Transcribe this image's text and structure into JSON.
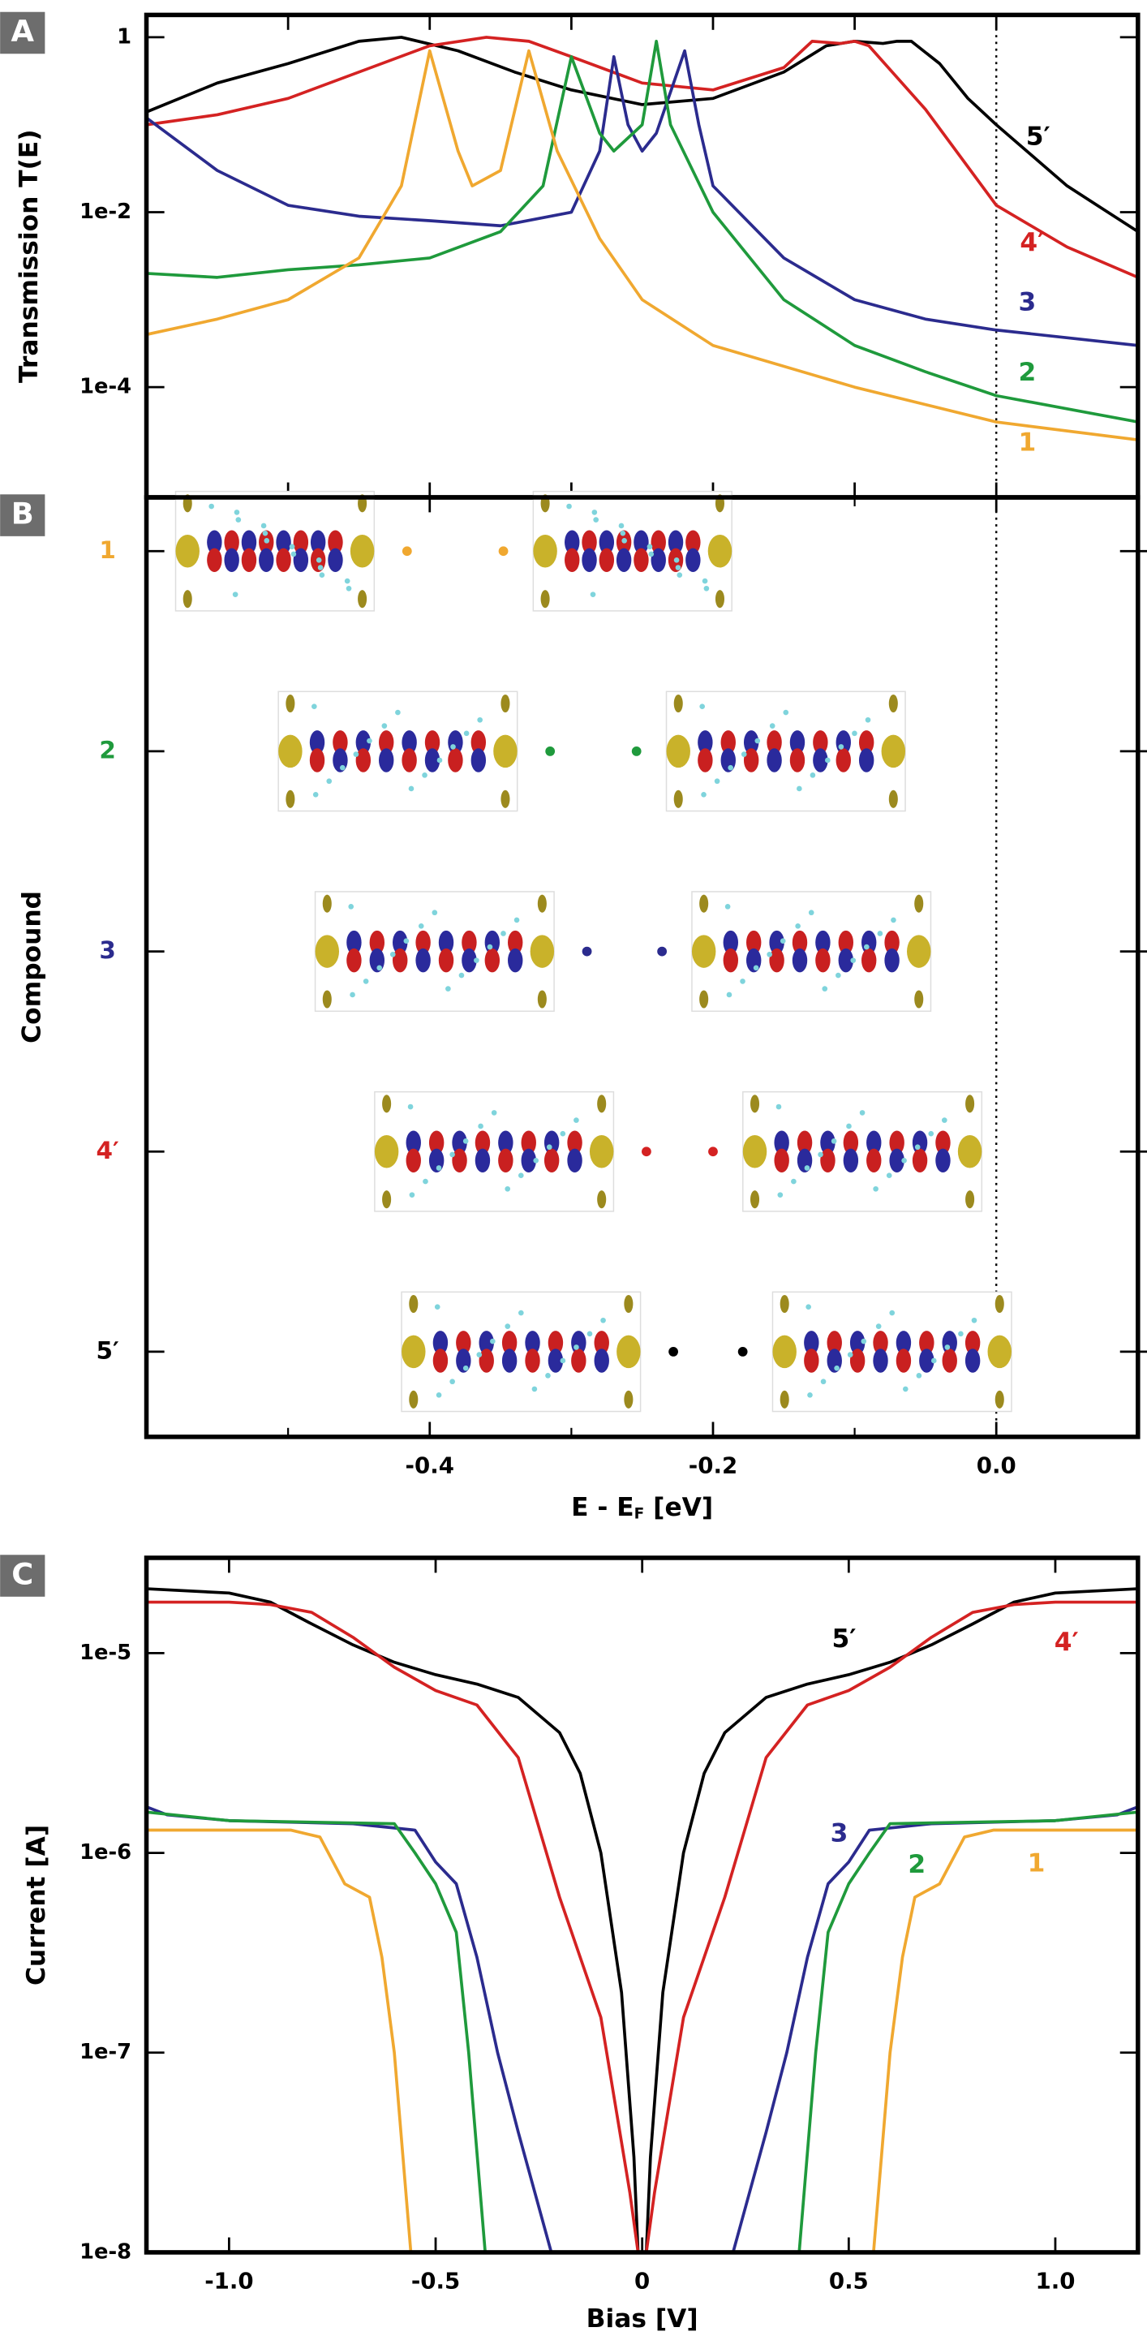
{
  "chart_data": [
    {
      "type": "line",
      "panel": "A",
      "y_label": "Transmission T(E)",
      "log_y": true,
      "xlim": [
        -0.6,
        0.1
      ],
      "xticks": [
        -0.5,
        -0.4,
        -0.3,
        -0.2,
        -0.1,
        0
      ],
      "ylim": [
        5.5e-06,
        1.8
      ],
      "yticks": [
        1,
        {
          "value": 0.01,
          "label": "1e-2"
        },
        {
          "value": 0.0001,
          "label": "1e-4"
        }
      ],
      "vline_x": 0,
      "series": [
        {
          "name": "5′",
          "color": "#000000",
          "x": [
            -0.6,
            -0.55,
            -0.5,
            -0.45,
            -0.42,
            -0.38,
            -0.34,
            -0.3,
            -0.25,
            -0.2,
            -0.15,
            -0.12,
            -0.1,
            -0.08,
            -0.07,
            -0.06,
            -0.04,
            -0.02,
            0.0,
            0.05,
            0.1
          ],
          "values": [
            0.14,
            0.3,
            0.5,
            0.9,
            1.0,
            0.7,
            0.4,
            0.25,
            0.17,
            0.2,
            0.4,
            0.8,
            0.9,
            0.85,
            0.9,
            0.9,
            0.5,
            0.2,
            0.1,
            0.02,
            0.006
          ]
        },
        {
          "name": "4′",
          "color": "#d42222",
          "x": [
            -0.6,
            -0.55,
            -0.5,
            -0.45,
            -0.4,
            -0.36,
            -0.33,
            -0.3,
            -0.25,
            -0.2,
            -0.15,
            -0.13,
            -0.11,
            -0.1,
            -0.09,
            -0.05,
            0.0,
            0.05,
            0.1
          ],
          "values": [
            0.1,
            0.13,
            0.2,
            0.4,
            0.8,
            1.0,
            0.9,
            0.6,
            0.3,
            0.25,
            0.45,
            0.9,
            0.85,
            0.9,
            0.8,
            0.15,
            0.012,
            0.004,
            0.0018
          ]
        },
        {
          "name": "3",
          "color": "#2b2b8e",
          "x": [
            -0.6,
            -0.55,
            -0.5,
            -0.45,
            -0.4,
            -0.35,
            -0.3,
            -0.28,
            -0.27,
            -0.26,
            -0.25,
            -0.24,
            -0.22,
            -0.21,
            -0.2,
            -0.15,
            -0.1,
            -0.05,
            0.0,
            0.1
          ],
          "values": [
            0.12,
            0.03,
            0.012,
            0.009,
            0.008,
            0.007,
            0.01,
            0.05,
            0.6,
            0.1,
            0.05,
            0.08,
            0.7,
            0.1,
            0.02,
            0.003,
            0.001,
            0.0006,
            0.00045,
            0.0003
          ]
        },
        {
          "name": "2",
          "color": "#1f9a3c",
          "x": [
            -0.6,
            -0.55,
            -0.5,
            -0.45,
            -0.4,
            -0.35,
            -0.32,
            -0.3,
            -0.28,
            -0.27,
            -0.25,
            -0.24,
            -0.23,
            -0.2,
            -0.15,
            -0.1,
            -0.05,
            0.0,
            0.1
          ],
          "values": [
            0.002,
            0.0018,
            0.0022,
            0.0025,
            0.003,
            0.006,
            0.02,
            0.6,
            0.08,
            0.05,
            0.1,
            0.9,
            0.1,
            0.01,
            0.001,
            0.0003,
            0.00015,
            8e-05,
            4e-05
          ]
        },
        {
          "name": "1",
          "color": "#f0a830",
          "x": [
            -0.6,
            -0.55,
            -0.5,
            -0.45,
            -0.42,
            -0.4,
            -0.38,
            -0.37,
            -0.35,
            -0.33,
            -0.31,
            -0.28,
            -0.25,
            -0.2,
            -0.1,
            0.0,
            0.1
          ],
          "values": [
            0.0004,
            0.0006,
            0.001,
            0.003,
            0.02,
            0.7,
            0.05,
            0.02,
            0.03,
            0.7,
            0.05,
            0.005,
            0.001,
            0.0003,
            0.0001,
            4e-05,
            2.5e-05
          ]
        }
      ]
    },
    {
      "type": "dot",
      "panel": "B",
      "y_label": "Compound",
      "x_label": [
        "E - E",
        "F",
        " [eV]"
      ],
      "xlim": [
        -0.6,
        0.1
      ],
      "xticks": [
        -0.4,
        -0.2,
        {
          "value": 0,
          "label": "0.0"
        }
      ],
      "xminorticks": [
        -0.5,
        -0.3,
        -0.1
      ],
      "vline_x": 0,
      "categories": [
        "1",
        "2",
        "3",
        "4′",
        "5′"
      ],
      "colors": [
        "#f0a830",
        "#1f9a3c",
        "#2b2b8e",
        "#d42222",
        "#000000"
      ],
      "values": [
        [
          -0.416,
          -0.348
        ],
        [
          -0.315,
          -0.254
        ],
        [
          -0.289,
          -0.236
        ],
        [
          -0.247,
          -0.2
        ],
        [
          -0.228,
          -0.179
        ]
      ]
    },
    {
      "type": "line",
      "panel": "C",
      "x_label": "Bias [V]",
      "y_label": "Current [A]",
      "log_y": true,
      "xlim": [
        -1.2,
        1.2
      ],
      "xticks": [
        {
          "value": -1,
          "label": "-1.0"
        },
        -0.5,
        0,
        0.5,
        {
          "value": 1,
          "label": "1.0"
        }
      ],
      "ylim": [
        1e-08,
        3e-05
      ],
      "yticks": [
        {
          "value": 1e-05,
          "label": "1e-5"
        },
        {
          "value": 1e-06,
          "label": "1e-6"
        },
        {
          "value": 1e-07,
          "label": "1e-7"
        },
        {
          "value": 1e-08,
          "label": "1e-8"
        }
      ],
      "series": [
        {
          "name": "5′",
          "color": "#000000",
          "x": [
            -1.2,
            -1.0,
            -0.9,
            -0.8,
            -0.7,
            -0.6,
            -0.5,
            -0.4,
            -0.3,
            -0.2,
            -0.15,
            -0.1,
            -0.05,
            -0.02,
            -0.01,
            0.01,
            0.02,
            0.05,
            0.1,
            0.15,
            0.2,
            0.3,
            0.4,
            0.5,
            0.6,
            0.7,
            0.8,
            0.9,
            1.0,
            1.2
          ],
          "values": [
            2.1e-05,
            2e-05,
            1.8e-05,
            1.4e-05,
            1.1e-05,
            9e-06,
            7.8e-06,
            7e-06,
            6e-06,
            4e-06,
            2.5e-06,
            1e-06,
            2e-07,
            3e-08,
            1e-08,
            1e-08,
            3e-08,
            2e-07,
            1e-06,
            2.5e-06,
            4e-06,
            6e-06,
            7e-06,
            7.8e-06,
            9e-06,
            1.1e-05,
            1.4e-05,
            1.8e-05,
            2e-05,
            2.1e-05
          ]
        },
        {
          "name": "4′",
          "color": "#d42222",
          "x": [
            -1.2,
            -1.0,
            -0.9,
            -0.8,
            -0.7,
            -0.6,
            -0.5,
            -0.4,
            -0.3,
            -0.2,
            -0.1,
            -0.03,
            -0.01,
            0.01,
            0.03,
            0.1,
            0.2,
            0.3,
            0.4,
            0.5,
            0.6,
            0.7,
            0.8,
            0.9,
            1.0,
            1.2
          ],
          "values": [
            1.8e-05,
            1.8e-05,
            1.75e-05,
            1.6e-05,
            1.2e-05,
            8.5e-06,
            6.5e-06,
            5.5e-06,
            3e-06,
            6e-07,
            1.5e-07,
            2e-08,
            1e-08,
            1e-08,
            2e-08,
            1.5e-07,
            6e-07,
            3e-06,
            5.5e-06,
            6.5e-06,
            8.5e-06,
            1.2e-05,
            1.6e-05,
            1.75e-05,
            1.8e-05,
            1.8e-05
          ]
        },
        {
          "name": "3",
          "color": "#2b2b8e",
          "x": [
            -1.2,
            -1.15,
            -1.0,
            -0.7,
            -0.55,
            -0.5,
            -0.45,
            -0.4,
            -0.35,
            -0.3,
            -0.22,
            0,
            0.22,
            0.3,
            0.35,
            0.4,
            0.45,
            0.5,
            0.55,
            0.7,
            1.0,
            1.15,
            1.2
          ],
          "values": [
            1.7e-06,
            1.55e-06,
            1.45e-06,
            1.4e-06,
            1.3e-06,
            9e-07,
            7e-07,
            3e-07,
            1e-07,
            4e-08,
            1e-08,
            null,
            1e-08,
            4e-08,
            1e-07,
            3e-07,
            7e-07,
            9e-07,
            1.3e-06,
            1.4e-06,
            1.45e-06,
            1.55e-06,
            1.7e-06
          ]
        },
        {
          "name": "2",
          "color": "#1f9a3c",
          "x": [
            -1.2,
            -1.0,
            -0.6,
            -0.55,
            -0.5,
            -0.45,
            -0.42,
            -0.38,
            0,
            0.38,
            0.42,
            0.45,
            0.5,
            0.55,
            0.6,
            1.0,
            1.2
          ],
          "values": [
            1.6e-06,
            1.45e-06,
            1.4e-06,
            1e-06,
            7e-07,
            4e-07,
            1e-07,
            1e-08,
            null,
            1e-08,
            1e-07,
            4e-07,
            7e-07,
            1e-06,
            1.4e-06,
            1.45e-06,
            1.6e-06
          ]
        },
        {
          "name": "1",
          "color": "#f0a830",
          "x": [
            -1.2,
            -0.85,
            -0.78,
            -0.72,
            -0.66,
            -0.63,
            -0.6,
            -0.56,
            0,
            0.56,
            0.6,
            0.63,
            0.66,
            0.72,
            0.78,
            0.85,
            1.2
          ],
          "values": [
            1.3e-06,
            1.3e-06,
            1.2e-06,
            7e-07,
            6e-07,
            3e-07,
            1e-07,
            1e-08,
            null,
            1e-08,
            1e-07,
            3e-07,
            6e-07,
            7e-07,
            1.2e-06,
            1.3e-06,
            1.3e-06
          ]
        }
      ]
    }
  ]
}
